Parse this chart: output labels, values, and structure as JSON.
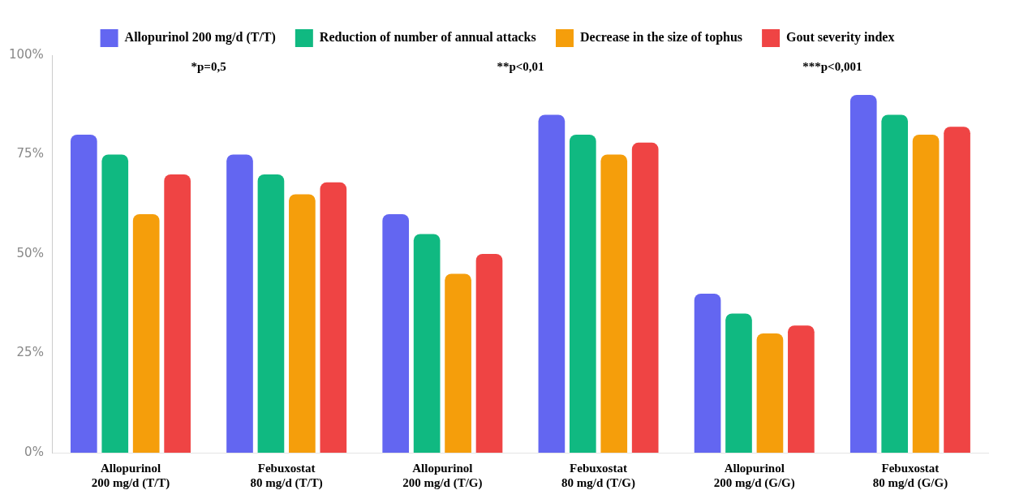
{
  "chart_data": {
    "type": "bar",
    "categories": [
      "Allopurinol 200 mg/d (T/T)",
      "Febuxostat 80 mg/d (T/T)",
      "Allopurinol 200 mg/d (T/G)",
      "Febuxostat 80 mg/d (T/G)",
      "Allopurinol 200 mg/d (G/G)",
      "Febuxostat 80 mg/d (G/G)"
    ],
    "series": [
      {
        "name": "Allopurinol 200 mg/d (T/T)",
        "color": "#6366f1",
        "values": [
          80,
          75,
          60,
          85,
          40,
          90
        ]
      },
      {
        "name": "Reduction of number of annual attacks",
        "color": "#10b981",
        "values": [
          75,
          70,
          55,
          80,
          35,
          85
        ]
      },
      {
        "name": "Decrease in the size of tophus",
        "color": "#f59e0b",
        "values": [
          60,
          65,
          45,
          75,
          30,
          80
        ]
      },
      {
        "name": "Gout severity index",
        "color": "#ef4444",
        "values": [
          70,
          68,
          50,
          78,
          32,
          82
        ]
      }
    ],
    "ylim": [
      0,
      100
    ],
    "yticks": [
      {
        "value": 0,
        "label": "0%"
      },
      {
        "value": 25,
        "label": "25%"
      },
      {
        "value": 50,
        "label": "50%"
      },
      {
        "value": 75,
        "label": "75%"
      },
      {
        "value": 100,
        "label": "100%"
      }
    ],
    "grid": false,
    "legend": "top",
    "annotations": [
      "*p=0,5",
      "**p<0,01",
      "***p<0,001"
    ]
  }
}
